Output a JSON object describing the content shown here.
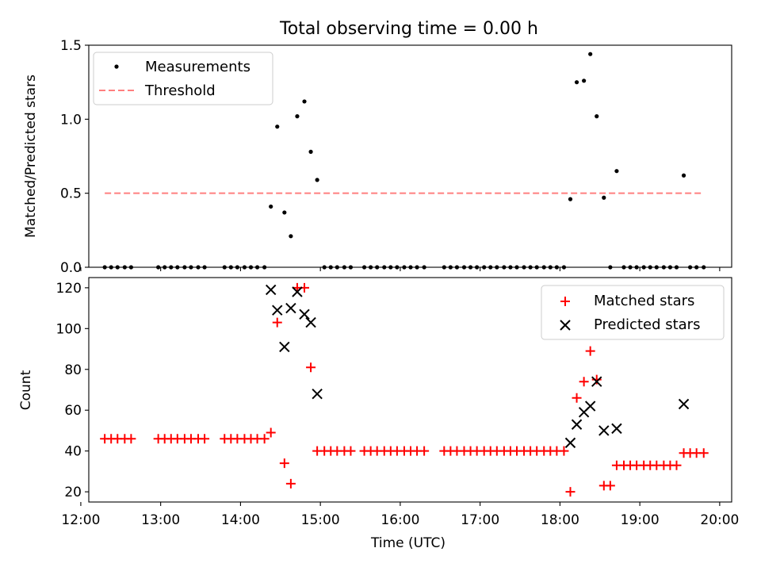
{
  "chart_data": {
    "title": "Total observing time = 0.00 h",
    "xlabel": "Time (UTC)",
    "x_unit": "hours UTC",
    "xlim": [
      12.1,
      20.15
    ],
    "xticks": [
      {
        "value": 12,
        "label": "12:00"
      },
      {
        "value": 13,
        "label": "13:00"
      },
      {
        "value": 14,
        "label": "14:00"
      },
      {
        "value": 15,
        "label": "15:00"
      },
      {
        "value": 16,
        "label": "16:00"
      },
      {
        "value": 17,
        "label": "17:00"
      },
      {
        "value": 18,
        "label": "18:00"
      },
      {
        "value": 19,
        "label": "19:00"
      },
      {
        "value": 20,
        "label": "20:00"
      }
    ],
    "panels": [
      {
        "type": "scatter",
        "ylabel": "Matched/Predicted stars",
        "ylim": [
          0,
          1.5
        ],
        "yticks": [
          {
            "value": 0,
            "label": "0.0"
          },
          {
            "value": 0.5,
            "label": "0.5"
          },
          {
            "value": 1.0,
            "label": "1.0"
          },
          {
            "value": 1.5,
            "label": "1.5"
          }
        ],
        "legend": {
          "location": "upper left",
          "entries": [
            "Measurements",
            "Threshold"
          ]
        },
        "series": [
          {
            "name": "Measurements",
            "marker": "dot",
            "color": "#000000",
            "points": [
              [
                12.3,
                0
              ],
              [
                12.38,
                0
              ],
              [
                12.46,
                0
              ],
              [
                12.55,
                0
              ],
              [
                12.63,
                0
              ],
              [
                12.97,
                0
              ],
              [
                13.05,
                0
              ],
              [
                13.13,
                0
              ],
              [
                13.21,
                0
              ],
              [
                13.3,
                0
              ],
              [
                13.38,
                0
              ],
              [
                13.47,
                0
              ],
              [
                13.55,
                0
              ],
              [
                13.8,
                0
              ],
              [
                13.88,
                0
              ],
              [
                13.96,
                0
              ],
              [
                14.05,
                0
              ],
              [
                14.13,
                0
              ],
              [
                14.21,
                0
              ],
              [
                14.3,
                0
              ],
              [
                14.38,
                0.41
              ],
              [
                14.46,
                0.95
              ],
              [
                14.55,
                0.37
              ],
              [
                14.63,
                0.21
              ],
              [
                14.71,
                1.02
              ],
              [
                14.8,
                1.12
              ],
              [
                14.88,
                0.78
              ],
              [
                14.96,
                0.59
              ],
              [
                15.05,
                0
              ],
              [
                15.13,
                0
              ],
              [
                15.21,
                0
              ],
              [
                15.3,
                0
              ],
              [
                15.38,
                0
              ],
              [
                15.55,
                0
              ],
              [
                15.63,
                0
              ],
              [
                15.71,
                0
              ],
              [
                15.8,
                0
              ],
              [
                15.88,
                0
              ],
              [
                15.96,
                0
              ],
              [
                16.05,
                0
              ],
              [
                16.13,
                0
              ],
              [
                16.21,
                0
              ],
              [
                16.3,
                0
              ],
              [
                16.55,
                0
              ],
              [
                16.63,
                0
              ],
              [
                16.71,
                0
              ],
              [
                16.8,
                0
              ],
              [
                16.88,
                0
              ],
              [
                16.96,
                0
              ],
              [
                17.05,
                0
              ],
              [
                17.13,
                0
              ],
              [
                17.21,
                0
              ],
              [
                17.3,
                0
              ],
              [
                17.38,
                0
              ],
              [
                17.46,
                0
              ],
              [
                17.55,
                0
              ],
              [
                17.63,
                0
              ],
              [
                17.71,
                0
              ],
              [
                17.8,
                0
              ],
              [
                17.88,
                0
              ],
              [
                17.96,
                0
              ],
              [
                18.05,
                0
              ],
              [
                18.13,
                0.46
              ],
              [
                18.21,
                1.25
              ],
              [
                18.3,
                1.26
              ],
              [
                18.38,
                1.44
              ],
              [
                18.46,
                1.02
              ],
              [
                18.55,
                0.47
              ],
              [
                18.63,
                0
              ],
              [
                18.71,
                0.65
              ],
              [
                18.8,
                0
              ],
              [
                18.88,
                0
              ],
              [
                18.96,
                0
              ],
              [
                19.05,
                0
              ],
              [
                19.13,
                0
              ],
              [
                19.21,
                0
              ],
              [
                19.3,
                0
              ],
              [
                19.38,
                0
              ],
              [
                19.46,
                0
              ],
              [
                19.55,
                0.62
              ],
              [
                19.63,
                0
              ],
              [
                19.71,
                0
              ],
              [
                19.8,
                0
              ]
            ]
          },
          {
            "name": "Threshold",
            "marker": "dashed-line",
            "color": "#ff7f7f",
            "points": [
              [
                12.3,
                0.5
              ],
              [
                19.8,
                0.5
              ]
            ]
          }
        ]
      },
      {
        "type": "scatter",
        "ylabel": "Count",
        "ylim": [
          15,
          125
        ],
        "yticks": [
          {
            "value": 20,
            "label": "20"
          },
          {
            "value": 40,
            "label": "40"
          },
          {
            "value": 60,
            "label": "60"
          },
          {
            "value": 80,
            "label": "80"
          },
          {
            "value": 100,
            "label": "100"
          },
          {
            "value": 120,
            "label": "120"
          }
        ],
        "legend": {
          "location": "upper right",
          "entries": [
            "Matched stars",
            "Predicted stars"
          ]
        },
        "series": [
          {
            "name": "Matched stars",
            "marker": "plus",
            "color": "#ff0000",
            "points": [
              [
                12.3,
                46
              ],
              [
                12.38,
                46
              ],
              [
                12.46,
                46
              ],
              [
                12.55,
                46
              ],
              [
                12.63,
                46
              ],
              [
                12.97,
                46
              ],
              [
                13.05,
                46
              ],
              [
                13.13,
                46
              ],
              [
                13.21,
                46
              ],
              [
                13.3,
                46
              ],
              [
                13.38,
                46
              ],
              [
                13.47,
                46
              ],
              [
                13.55,
                46
              ],
              [
                13.8,
                46
              ],
              [
                13.88,
                46
              ],
              [
                13.96,
                46
              ],
              [
                14.05,
                46
              ],
              [
                14.13,
                46
              ],
              [
                14.21,
                46
              ],
              [
                14.3,
                46
              ],
              [
                14.38,
                49
              ],
              [
                14.46,
                103
              ],
              [
                14.55,
                34
              ],
              [
                14.63,
                24
              ],
              [
                14.71,
                120
              ],
              [
                14.8,
                120
              ],
              [
                14.88,
                81
              ],
              [
                14.96,
                40
              ],
              [
                15.05,
                40
              ],
              [
                15.13,
                40
              ],
              [
                15.21,
                40
              ],
              [
                15.3,
                40
              ],
              [
                15.38,
                40
              ],
              [
                15.55,
                40
              ],
              [
                15.63,
                40
              ],
              [
                15.71,
                40
              ],
              [
                15.8,
                40
              ],
              [
                15.88,
                40
              ],
              [
                15.96,
                40
              ],
              [
                16.05,
                40
              ],
              [
                16.13,
                40
              ],
              [
                16.21,
                40
              ],
              [
                16.3,
                40
              ],
              [
                16.55,
                40
              ],
              [
                16.63,
                40
              ],
              [
                16.71,
                40
              ],
              [
                16.8,
                40
              ],
              [
                16.88,
                40
              ],
              [
                16.96,
                40
              ],
              [
                17.05,
                40
              ],
              [
                17.13,
                40
              ],
              [
                17.21,
                40
              ],
              [
                17.3,
                40
              ],
              [
                17.38,
                40
              ],
              [
                17.46,
                40
              ],
              [
                17.55,
                40
              ],
              [
                17.63,
                40
              ],
              [
                17.71,
                40
              ],
              [
                17.8,
                40
              ],
              [
                17.88,
                40
              ],
              [
                17.96,
                40
              ],
              [
                18.05,
                40
              ],
              [
                18.13,
                20
              ],
              [
                18.21,
                66
              ],
              [
                18.3,
                74
              ],
              [
                18.38,
                89
              ],
              [
                18.46,
                75
              ],
              [
                18.55,
                23
              ],
              [
                18.63,
                23
              ],
              [
                18.71,
                33
              ],
              [
                18.8,
                33
              ],
              [
                18.88,
                33
              ],
              [
                18.96,
                33
              ],
              [
                19.05,
                33
              ],
              [
                19.13,
                33
              ],
              [
                19.21,
                33
              ],
              [
                19.3,
                33
              ],
              [
                19.38,
                33
              ],
              [
                19.46,
                33
              ],
              [
                19.55,
                39
              ],
              [
                19.63,
                39
              ],
              [
                19.71,
                39
              ],
              [
                19.8,
                39
              ]
            ]
          },
          {
            "name": "Predicted stars",
            "marker": "x",
            "color": "#000000",
            "points": [
              [
                14.38,
                119
              ],
              [
                14.46,
                109
              ],
              [
                14.55,
                91
              ],
              [
                14.63,
                110
              ],
              [
                14.71,
                118
              ],
              [
                14.8,
                107
              ],
              [
                14.88,
                103
              ],
              [
                14.96,
                68
              ],
              [
                18.13,
                44
              ],
              [
                18.21,
                53
              ],
              [
                18.3,
                59
              ],
              [
                18.38,
                62
              ],
              [
                18.46,
                74
              ],
              [
                18.55,
                50
              ],
              [
                18.71,
                51
              ],
              [
                19.55,
                63
              ]
            ]
          }
        ]
      }
    ]
  }
}
